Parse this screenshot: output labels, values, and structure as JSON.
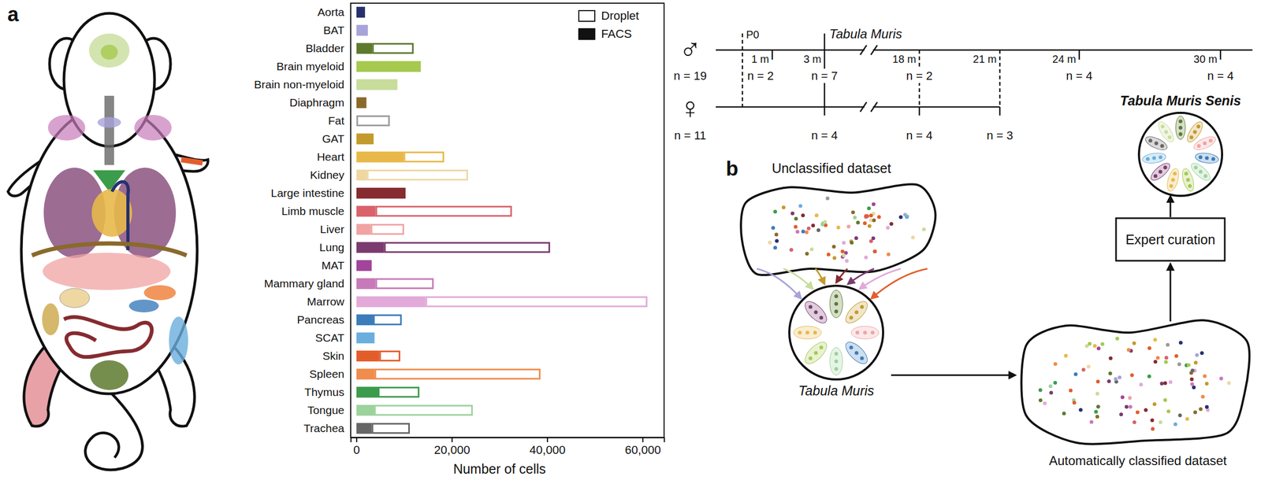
{
  "panel_labels": [
    "a",
    "b"
  ],
  "chart_data": {
    "type": "bar",
    "orientation": "horizontal",
    "stacked": true,
    "categories": [
      "Aorta",
      "BAT",
      "Bladder",
      "Brain myeloid",
      "Brain non-myeloid",
      "Diaphragm",
      "Fat",
      "GAT",
      "Heart",
      "Kidney",
      "Large intestine",
      "Limb muscle",
      "Liver",
      "Lung",
      "MAT",
      "Mammary gland",
      "Marrow",
      "Pancreas",
      "SCAT",
      "Skin",
      "Spleen",
      "Thymus",
      "Tongue",
      "Trachea"
    ],
    "series": [
      {
        "name": "FACS",
        "marker": "filled",
        "values": [
          1800,
          2400,
          3300,
          13500,
          8600,
          2100,
          null,
          3600,
          9900,
          2200,
          10300,
          4000,
          3000,
          5800,
          3200,
          4000,
          14500,
          3500,
          3800,
          4800,
          3800,
          4500,
          3700,
          3200
        ]
      },
      {
        "name": "Droplet",
        "marker": "outline",
        "values": [
          null,
          null,
          8700,
          null,
          null,
          null,
          7000,
          null,
          8500,
          21200,
          null,
          28600,
          7000,
          34800,
          null,
          12200,
          46500,
          6000,
          null,
          4400,
          34800,
          8700,
          20700,
          8000
        ]
      }
    ],
    "colors": [
      "#27306e",
      "#a8a3d9",
      "#5d7a2f",
      "#a6c94f",
      "#c8dd9c",
      "#8a6a2b",
      "#9a9a9a",
      "#c39a2c",
      "#e8b94a",
      "#eed7a1",
      "#862b30",
      "#d9626b",
      "#f0a3a3",
      "#7b3b6f",
      "#a2449a",
      "#c77ab9",
      "#e2a9d9",
      "#3c7cba",
      "#6aaedc",
      "#e35d2b",
      "#f08c4c",
      "#3b9c4b",
      "#9cd29c",
      "#666666"
    ],
    "xlabel": "Number of cells",
    "xlim": [
      -1200,
      64500
    ],
    "xticks": [
      0,
      {
        "value": 20000,
        "label": "20,000"
      },
      {
        "value": 40000,
        "label": "40,000"
      },
      {
        "value": 60000,
        "label": "60,000"
      }
    ],
    "legend": "top-right"
  },
  "timeline": {
    "label": "Tabula Muris",
    "ticks": [
      "P0",
      "1 m",
      "3 m",
      "18 m",
      "21 m",
      "24 m",
      "30 m"
    ],
    "male": {
      "symbol": "♂",
      "n": "n = 19",
      "counts": [
        null,
        "n = 2",
        "n = 7",
        "n = 2",
        null,
        "n = 4",
        "n = 4"
      ]
    },
    "female": {
      "symbol": "♀",
      "n": "n = 11",
      "counts": [
        null,
        null,
        "n = 4",
        "n = 4",
        "n = 3",
        null,
        null
      ]
    }
  },
  "diagram": {
    "unclassified": "Unclassified dataset",
    "reference": "Tabula Muris",
    "classified": "Automatically classified dataset",
    "curation": "Expert curation",
    "result": "Tabula Muris Senis"
  }
}
